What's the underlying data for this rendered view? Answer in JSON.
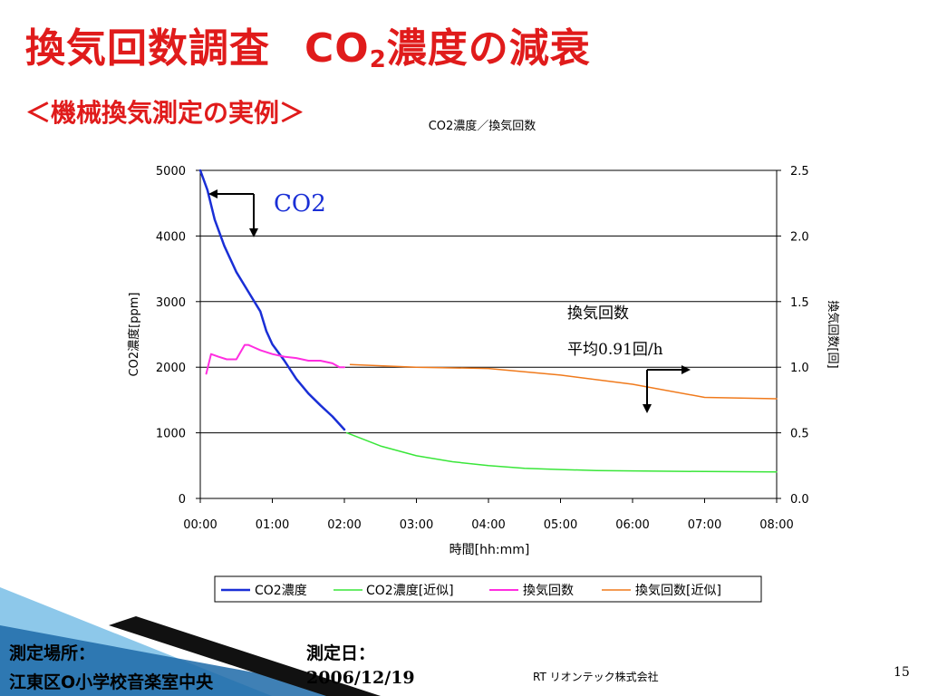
{
  "slide": {
    "title_main": "換気回数調査",
    "title_co": "CO",
    "title_sub": "2",
    "title_rest": "濃度の減衰",
    "subtitle": "＜機械換気測定の実例＞",
    "footer_location_label": "測定場所：",
    "footer_location_value": "江東区O小学校音楽室中央",
    "footer_date_label": "測定日：",
    "footer_date_value": "2006/12/19",
    "company": "RT リオンテック株式会社",
    "page_number": "15"
  },
  "colors": {
    "title": "#e01b1b",
    "co2": "#1a2fd6",
    "co2_approx": "#39e639",
    "ach": "#ff2ee0",
    "ach_approx": "#f07a1c",
    "deco_blue": "#1d6aa8"
  },
  "chart_data": {
    "type": "line",
    "title": "CO2濃度／換気回数",
    "xlabel": "時間[hh:mm]",
    "ylabel_left": "CO2濃度[ppm]",
    "ylabel_right": "換気回数[回]",
    "xlim": [
      0,
      480
    ],
    "ylim_left": [
      0,
      5000
    ],
    "ylim_right": [
      0,
      2.5
    ],
    "x_ticks": [
      "00:00",
      "01:00",
      "02:00",
      "03:00",
      "04:00",
      "05:00",
      "06:00",
      "07:00",
      "08:00"
    ],
    "y_ticks_left": [
      "0",
      "1000",
      "2000",
      "3000",
      "4000",
      "5000"
    ],
    "y_ticks_right": [
      "0.0",
      "0.5",
      "1.0",
      "1.5",
      "2.0",
      "2.5"
    ],
    "grid": true,
    "legend_position": "bottom",
    "series": [
      {
        "name": "CO2濃度",
        "axis": "left",
        "color": "#1a2fd6",
        "width": 2.5,
        "x": [
          0,
          6,
          12,
          20,
          30,
          40,
          50,
          55,
          60,
          70,
          80,
          90,
          100,
          110,
          120
        ],
        "y": [
          5000,
          4700,
          4250,
          3850,
          3450,
          3150,
          2850,
          2550,
          2350,
          2100,
          1820,
          1600,
          1420,
          1250,
          1050
        ]
      },
      {
        "name": "CO2濃度[近似]",
        "axis": "left",
        "color": "#39e639",
        "width": 1.5,
        "x": [
          122,
          150,
          180,
          210,
          240,
          270,
          300,
          330,
          360,
          390,
          420,
          450,
          480
        ],
        "y": [
          1000,
          800,
          650,
          560,
          500,
          460,
          440,
          425,
          420,
          415,
          410,
          408,
          405
        ]
      },
      {
        "name": "換気回数",
        "axis": "right",
        "color": "#ff2ee0",
        "width": 2,
        "x": [
          5,
          9,
          15,
          22,
          30,
          37,
          40,
          45,
          50,
          60,
          70,
          80,
          90,
          100,
          110,
          116,
          120
        ],
        "y": [
          0.95,
          1.1,
          1.08,
          1.06,
          1.06,
          1.17,
          1.17,
          1.15,
          1.13,
          1.1,
          1.08,
          1.07,
          1.05,
          1.05,
          1.03,
          1.0,
          1.0
        ]
      },
      {
        "name": "換気回数[近似]",
        "axis": "right",
        "color": "#f07a1c",
        "width": 1.5,
        "x": [
          125,
          180,
          240,
          300,
          360,
          420,
          480
        ],
        "y": [
          1.02,
          1.0,
          0.99,
          0.94,
          0.87,
          0.77,
          0.76
        ]
      }
    ],
    "annotations": {
      "co2_label": "CO2",
      "ach_label": "換気回数",
      "ach_average": "平均0.91回/h"
    }
  }
}
